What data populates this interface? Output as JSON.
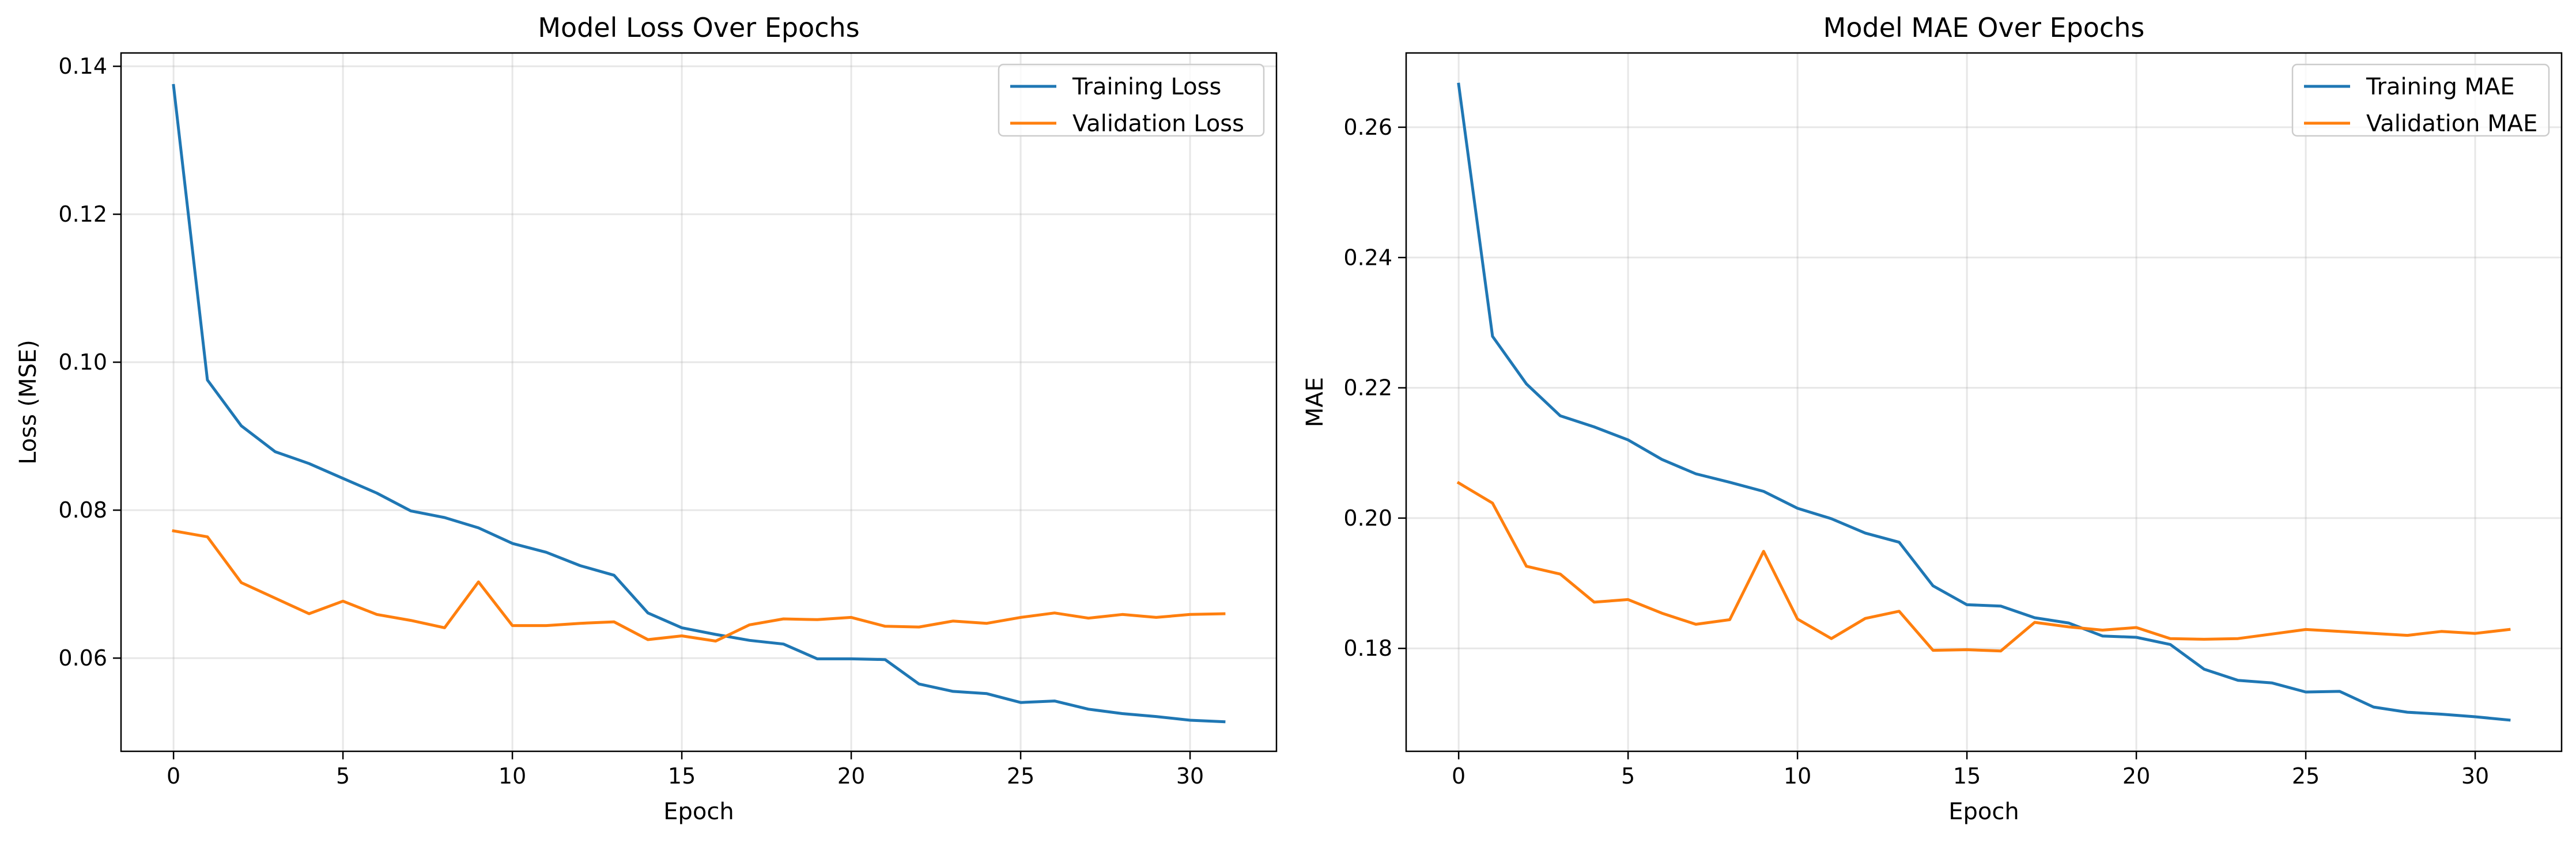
{
  "chart_data": [
    {
      "type": "line",
      "title": "Model Loss Over Epochs",
      "xlabel": "Epoch",
      "ylabel": "Loss (MSE)",
      "xlim": [
        -1.55,
        32.55
      ],
      "ylim": [
        0.0474,
        0.1418
      ],
      "xticks": [
        0,
        5,
        10,
        15,
        20,
        25,
        30
      ],
      "yticks": [
        0.06,
        0.08,
        0.1,
        0.12,
        0.14
      ],
      "ytick_labels": [
        "0.06",
        "0.08",
        "0.10",
        "0.12",
        "0.14"
      ],
      "grid": true,
      "legend": "top-right",
      "x": [
        0,
        1,
        2,
        3,
        4,
        5,
        6,
        7,
        8,
        9,
        10,
        11,
        12,
        13,
        14,
        15,
        16,
        17,
        18,
        19,
        20,
        21,
        22,
        23,
        24,
        25,
        26,
        27,
        28,
        29,
        30,
        31
      ],
      "series": [
        {
          "name": "Training Loss",
          "color": "#1f77b4",
          "values": [
            0.1374,
            0.0976,
            0.0914,
            0.0879,
            0.0863,
            0.0843,
            0.0823,
            0.0799,
            0.079,
            0.0776,
            0.0755,
            0.0743,
            0.0725,
            0.0712,
            0.0661,
            0.0641,
            0.0632,
            0.0624,
            0.0619,
            0.0599,
            0.0599,
            0.0598,
            0.0565,
            0.0555,
            0.0552,
            0.054,
            0.0542,
            0.0531,
            0.0525,
            0.0521,
            0.0516,
            0.0514
          ]
        },
        {
          "name": "Validation Loss",
          "color": "#ff7f0e",
          "values": [
            0.0772,
            0.0764,
            0.0702,
            0.0681,
            0.066,
            0.0677,
            0.0659,
            0.0651,
            0.0641,
            0.0703,
            0.0644,
            0.0644,
            0.0647,
            0.0649,
            0.0625,
            0.063,
            0.0623,
            0.0645,
            0.0653,
            0.0652,
            0.0655,
            0.0643,
            0.0642,
            0.065,
            0.0647,
            0.0655,
            0.0661,
            0.0654,
            0.0659,
            0.0655,
            0.0659,
            0.066
          ]
        }
      ]
    },
    {
      "type": "line",
      "title": "Model MAE Over Epochs",
      "xlabel": "Epoch",
      "ylabel": "MAE",
      "xlim": [
        -1.55,
        32.55
      ],
      "ylim": [
        0.1642,
        0.2714
      ],
      "xticks": [
        0,
        5,
        10,
        15,
        20,
        25,
        30
      ],
      "yticks": [
        0.18,
        0.2,
        0.22,
        0.24,
        0.26
      ],
      "ytick_labels": [
        "0.18",
        "0.20",
        "0.22",
        "0.24",
        "0.26"
      ],
      "grid": true,
      "legend": "top-right",
      "x": [
        0,
        1,
        2,
        3,
        4,
        5,
        6,
        7,
        8,
        9,
        10,
        11,
        12,
        13,
        14,
        15,
        16,
        17,
        18,
        19,
        20,
        21,
        22,
        23,
        24,
        25,
        26,
        27,
        28,
        29,
        30,
        31
      ],
      "series": [
        {
          "name": "Training MAE",
          "color": "#1f77b4",
          "values": [
            0.2666,
            0.2279,
            0.2206,
            0.2157,
            0.214,
            0.212,
            0.209,
            0.2068,
            0.2055,
            0.2041,
            0.2015,
            0.1999,
            0.1977,
            0.1963,
            0.1896,
            0.1867,
            0.1865,
            0.1847,
            0.1839,
            0.1819,
            0.1817,
            0.1806,
            0.1768,
            0.1751,
            0.1747,
            0.1733,
            0.1734,
            0.171,
            0.1702,
            0.1699,
            0.1695,
            0.169
          ]
        },
        {
          "name": "Validation MAE",
          "color": "#ff7f0e",
          "values": [
            0.2054,
            0.2023,
            0.1926,
            0.1914,
            0.1871,
            0.1875,
            0.1854,
            0.1837,
            0.1844,
            0.1949,
            0.1845,
            0.1815,
            0.1846,
            0.1857,
            0.1797,
            0.1798,
            0.1796,
            0.184,
            0.1833,
            0.1828,
            0.1832,
            0.1815,
            0.1814,
            0.1815,
            0.1822,
            0.1829,
            0.1826,
            0.1823,
            0.182,
            0.1826,
            0.1823,
            0.1829
          ]
        }
      ]
    }
  ]
}
